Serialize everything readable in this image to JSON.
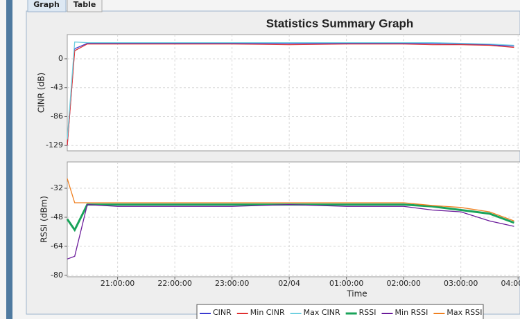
{
  "tabs": [
    "Graph",
    "Table"
  ],
  "chart_data": [
    {
      "type": "line",
      "title": "Statistics Summary Graph",
      "ylabel": "CINR (dB)",
      "grid": true,
      "x": [
        20.12,
        20.25,
        20.47,
        21,
        22,
        23,
        24,
        25,
        26,
        26.5,
        27,
        27.5,
        27.93
      ],
      "xlim": [
        20.12,
        28.07
      ],
      "ylim": [
        -137,
        36
      ],
      "yticks": [
        0,
        -43,
        -86,
        -129
      ],
      "series": [
        {
          "name": "CINR",
          "color": "#3a3ad0",
          "values": [
            -129,
            15,
            23,
            23,
            23,
            23,
            23,
            23,
            23,
            23,
            22,
            21,
            19
          ]
        },
        {
          "name": "Min CINR",
          "color": "#e03030",
          "values": [
            -129,
            12,
            22,
            22,
            22,
            22,
            21,
            22,
            22,
            21,
            21,
            20,
            17
          ]
        },
        {
          "name": "Max CINR",
          "color": "#6fd0e0",
          "values": [
            -120,
            25,
            24,
            24,
            24,
            24,
            24,
            24,
            24,
            24,
            23,
            22,
            20
          ]
        }
      ]
    },
    {
      "type": "line",
      "ylabel": "RSSI (dBm)",
      "xlabel": "Time",
      "grid": true,
      "x": [
        20.12,
        20.25,
        20.47,
        21,
        22,
        23,
        24,
        25,
        26,
        26.5,
        27,
        27.5,
        27.93
      ],
      "xlim": [
        20.12,
        28.07
      ],
      "xticks": [
        {
          "value": 21,
          "label": "21:00:00"
        },
        {
          "value": 22,
          "label": "22:00:00"
        },
        {
          "value": 23,
          "label": "23:00:00"
        },
        {
          "value": 24,
          "label": "02/04"
        },
        {
          "value": 25,
          "label": "01:00:00"
        },
        {
          "value": 26,
          "label": "02:00:00"
        },
        {
          "value": 27,
          "label": "03:00:00"
        },
        {
          "value": 28,
          "label": "04:00:00"
        }
      ],
      "ylim": [
        -80.8,
        -17.5
      ],
      "yticks": [
        -32,
        -48,
        -64,
        -80
      ],
      "series": [
        {
          "name": "RSSI",
          "color": "#1aa35a",
          "width": 3,
          "values": [
            -49,
            -55,
            -41,
            -41,
            -41,
            -41,
            -41,
            -41,
            -41,
            -42,
            -44,
            -46,
            -51
          ]
        },
        {
          "name": "Min RSSI",
          "color": "#6a1a9a",
          "values": [
            -71,
            -69.5,
            -41,
            -42,
            -42,
            -42,
            -41,
            -42,
            -42,
            -44,
            -45,
            -50,
            -53
          ]
        },
        {
          "name": "Max RSSI",
          "color": "#f08020",
          "values": [
            -26.7,
            -40,
            -40,
            -40,
            -40,
            -40,
            -40,
            -40,
            -40,
            -41.5,
            -42.6,
            -45,
            -50
          ]
        }
      ]
    }
  ]
}
